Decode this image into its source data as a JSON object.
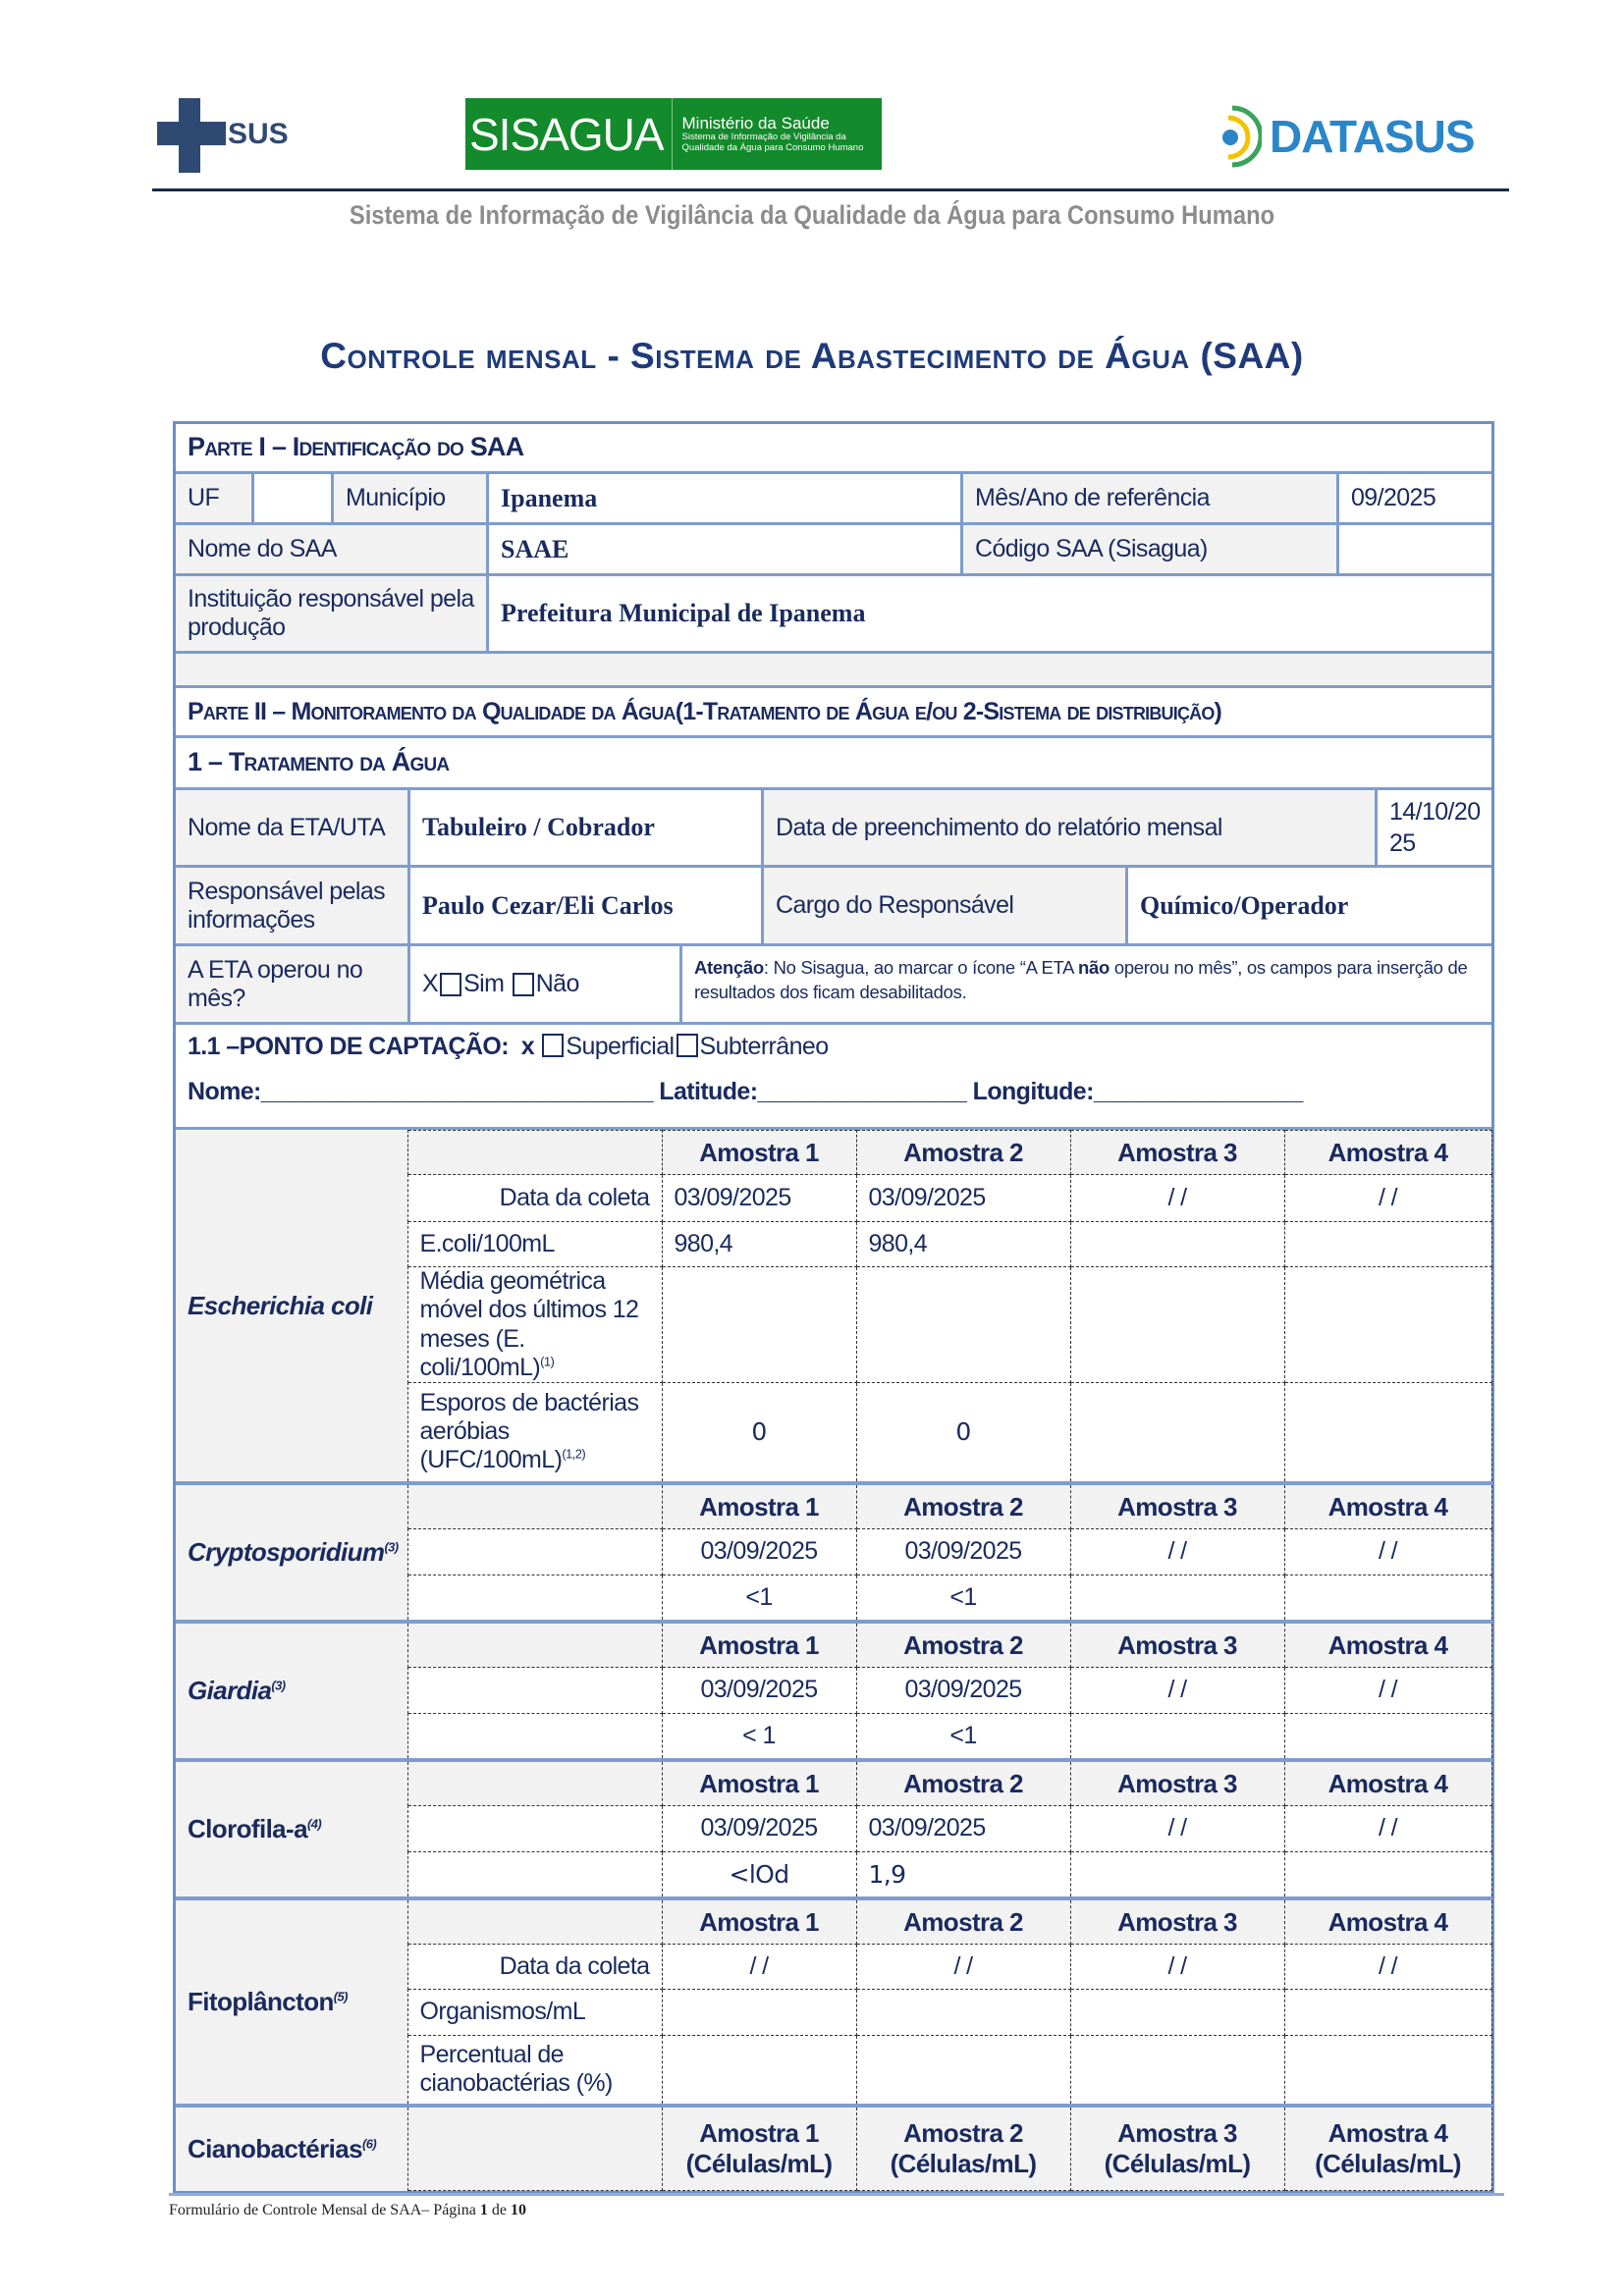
{
  "header": {
    "sus_logo_text": "SUS",
    "sisagua_logo": {
      "name": "SISAGUA",
      "line1": "Ministério da Saúde",
      "line2": "Sistema de Informação de Vigilância da",
      "line3": "Qualidade da Água para Consumo Humano"
    },
    "datasus_logo_text": "DATASUS",
    "subtitle": "Sistema de Informação de Vigilância da Qualidade da Água para Consumo Humano"
  },
  "title": "Controle mensal - Sistema de Abastecimento de Água (SAA)",
  "part1": {
    "heading": "Parte I – Identificação do SAA",
    "uf_label": "UF",
    "uf_value": "",
    "municipio_label": "Município",
    "municipio_value": "Ipanema",
    "mes_ano_label": "Mês/Ano de referência",
    "mes_ano_value": "09/2025",
    "nome_saa_label": "Nome do SAA",
    "nome_saa_value": "SAAE",
    "codigo_label": "Código SAA (Sisagua)",
    "codigo_value": "",
    "instituicao_label": "Instituição responsável pela produção",
    "instituicao_value": "Prefeitura Municipal de Ipanema"
  },
  "part2": {
    "heading": "Parte II – Monitoramento da Qualidade da Água(1-Tratamento de Água e/ou 2-Sistema de distribuição)",
    "section1": "1 – Tratamento da Água",
    "eta_label": "Nome da ETA/UTA",
    "eta_value": "Tabuleiro / Cobrador",
    "data_preench_label": "Data de preenchimento do relatório mensal",
    "data_preench_value": "14/10/20 25",
    "responsavel_label": "Responsável pelas informações",
    "responsavel_value": "Paulo Cezar/Eli Carlos",
    "cargo_label": "Cargo do Responsável",
    "cargo_value": "Químico/Operador",
    "operou_label": "A ETA operou no mês?",
    "operou_mark": "X",
    "sim_label": "Sim",
    "nao_label": "Não",
    "atencao_bold": "Atenção",
    "atencao_text1": ": No Sisagua, ao marcar o ícone “A ETA ",
    "atencao_bold2": "não",
    "atencao_text2": " operou no mês”, os campos para inserção de resultados dos ficam desabilitados.",
    "captacao_label": "1.1 –PONTO DE CAPTAÇÃO:",
    "captacao_mark": "x",
    "superficial_label": "Superficial",
    "subterraneo_label": "Subterrâneo",
    "nome_label": "Nome:",
    "nome_line": "______________________________",
    "latitude_label": "Latitude:",
    "latitude_line": "________________",
    "longitude_label": "Longitude:",
    "longitude_line": "________________"
  },
  "parameters": [
    {
      "name": "Escherichia coli",
      "sup": "",
      "italic": true,
      "rows": [
        {
          "label": "",
          "sup": "",
          "header": true,
          "cells": [
            "Amostra 1",
            "Amostra 2",
            "Amostra 3",
            "Amostra 4"
          ]
        },
        {
          "label": "Data da coleta",
          "sup": "",
          "cells": [
            "03/09/2025",
            "03/09/2025",
            "/ /",
            "/ /"
          ]
        },
        {
          "label": "E.coli/100mL",
          "sup": "",
          "cells": [
            "980,4",
            "980,4",
            "",
            ""
          ]
        },
        {
          "label": "Média geométrica móvel dos últimos 12 meses (E. coli/100mL)",
          "sup": "(1)",
          "cells": [
            "",
            "",
            "",
            ""
          ]
        },
        {
          "label": "Esporos de bactérias aeróbias (UFC/100mL)",
          "sup": "(1,2)",
          "cells": [
            "0",
            "0",
            "",
            ""
          ]
        }
      ]
    },
    {
      "name": "Cryptosporidium",
      "sup": "(3)",
      "italic": true,
      "rows": [
        {
          "label": "",
          "sup": "",
          "header": true,
          "cells": [
            "Amostra 1",
            "Amostra 2",
            "Amostra 3",
            "Amostra 4"
          ]
        },
        {
          "label": "",
          "sup": "",
          "cells": [
            "03/09/2025",
            "03/09/2025",
            "/ /",
            "/ /"
          ]
        },
        {
          "label": "",
          "sup": "",
          "cells": [
            "<1",
            "<1",
            "",
            ""
          ]
        }
      ]
    },
    {
      "name": "Giardia",
      "sup": "(3)",
      "italic": true,
      "rows": [
        {
          "label": "",
          "sup": "",
          "header": true,
          "cells": [
            "Amostra 1",
            "Amostra 2",
            "Amostra 3",
            "Amostra 4"
          ]
        },
        {
          "label": "",
          "sup": "",
          "cells": [
            "03/09/2025",
            "03/09/2025",
            "/ /",
            "/ /"
          ]
        },
        {
          "label": "",
          "sup": "",
          "cells": [
            "< 1",
            "<1",
            "",
            ""
          ]
        }
      ]
    },
    {
      "name": "Clorofila-a",
      "sup": "(4)",
      "italic": false,
      "rows": [
        {
          "label": "",
          "sup": "",
          "header": true,
          "cells": [
            "Amostra 1",
            "Amostra 2",
            "Amostra 3",
            "Amostra 4"
          ]
        },
        {
          "label": "",
          "sup": "",
          "cells": [
            "03/09/2025",
            "03/09/2025",
            "/ /",
            "/ /"
          ]
        },
        {
          "label": "",
          "sup": "",
          "cells": [
            "<lOd",
            "1,9",
            "",
            ""
          ]
        }
      ]
    },
    {
      "name": "Fitoplâncton",
      "sup": "(5)",
      "italic": false,
      "rows": [
        {
          "label": "",
          "sup": "",
          "header": true,
          "cells": [
            "Amostra 1",
            "Amostra 2",
            "Amostra 3",
            "Amostra 4"
          ]
        },
        {
          "label": "Data da coleta",
          "sup": "",
          "cells": [
            "/ /",
            "/ /",
            "/ /",
            "/ /"
          ]
        },
        {
          "label": "Organismos/mL",
          "sup": "",
          "cells": [
            "",
            "",
            "",
            ""
          ]
        },
        {
          "label": "Percentual de cianobactérias (%)",
          "sup": "",
          "cells": [
            "",
            "",
            "",
            ""
          ]
        }
      ]
    },
    {
      "name": "Cianobactérias",
      "sup": "(6)",
      "italic": false,
      "rows": [
        {
          "label": "",
          "sup": "",
          "header": true,
          "cells": [
            "Amostra 1 (Células/mL)",
            "Amostra 2 (Células/mL)",
            "Amostra 3 (Células/mL)",
            "Amostra 4 (Células/mL)"
          ]
        }
      ]
    }
  ],
  "footer": {
    "text": "Formulário de Controle Mensal de SAA– Página ",
    "page": "1",
    "of": " de ",
    "total": "10"
  },
  "colors": {
    "border": "#7e9ccd",
    "label_bg": "#f2f2f2",
    "text": "#1a2a5e",
    "title": "#1f3a7a",
    "sisagua_green": "#138a2b",
    "datasus_blue": "#2a86c8"
  }
}
